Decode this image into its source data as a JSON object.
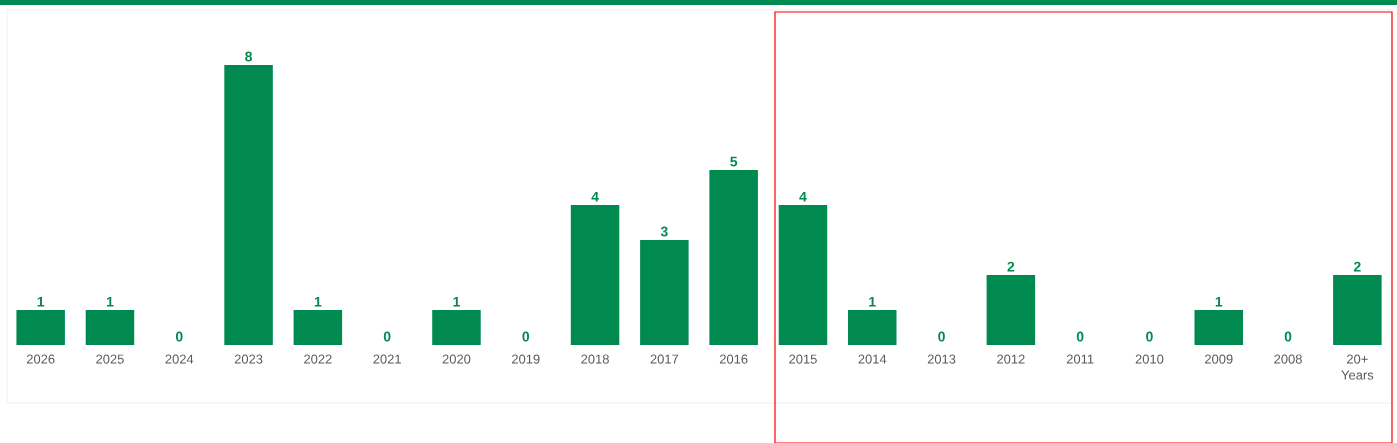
{
  "chart_data": {
    "type": "bar",
    "categories": [
      "2026",
      "2025",
      "2024",
      "2023",
      "2022",
      "2021",
      "2020",
      "2019",
      "2018",
      "2017",
      "2016",
      "2015",
      "2014",
      "2013",
      "2012",
      "2011",
      "2010",
      "2009",
      "2008",
      "20+ Years"
    ],
    "values": [
      1,
      1,
      0,
      8,
      1,
      0,
      1,
      0,
      4,
      3,
      5,
      4,
      1,
      0,
      2,
      0,
      0,
      1,
      0,
      2
    ],
    "color": "#008a50",
    "data_labels": true
  }
}
